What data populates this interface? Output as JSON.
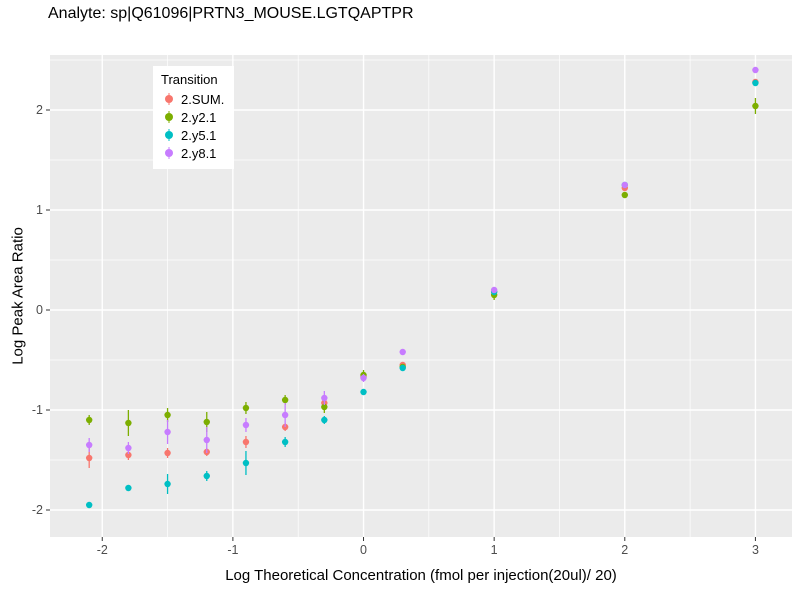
{
  "title": "Analyte: sp|Q61096|PRTN3_MOUSE.LGTQAPTPR",
  "chart_data": {
    "type": "scatter",
    "title": "Analyte: sp|Q61096|PRTN3_MOUSE.LGTQAPTPR",
    "xlabel": "Log Theoretical Concentration (fmol per injection(20ul)/ 20)",
    "ylabel": "Log Peak Area Ratio",
    "xlim": [
      -2.4,
      3.28
    ],
    "ylim": [
      -2.27,
      2.55
    ],
    "x_ticks_major": [
      -2,
      -1,
      0,
      1,
      2,
      3
    ],
    "x_ticks_minor": [
      -1.5,
      -0.5,
      0.5,
      1.5,
      2.5
    ],
    "y_ticks_major": [
      -2,
      -1,
      0,
      1,
      2
    ],
    "y_ticks_minor": [
      -1.5,
      -0.5,
      0.5,
      1.5,
      2.5
    ],
    "grid": true,
    "panel_bg": "#ebebeb",
    "grid_color": "#ffffff",
    "tick_label_color": "#4d4d4d",
    "tick_mark_color": "#333333",
    "legend_title": "Transition",
    "legend_position": "top-left-inset",
    "x": [
      -2.1,
      -1.8,
      -1.5,
      -1.2,
      -0.9,
      -0.6,
      -0.3,
      0,
      0.3,
      1,
      2,
      3
    ],
    "series": [
      {
        "name": "2.SUM.",
        "color": "#F8766D",
        "y": [
          -1.48,
          -1.45,
          -1.43,
          -1.42,
          -1.32,
          -1.17,
          -0.93,
          -0.67,
          -0.55,
          0.18,
          1.22,
          2.28
        ],
        "se": [
          0.1,
          0.05,
          0.05,
          0.04,
          0.06,
          0.04,
          0.05,
          0.04,
          0.03,
          0.04,
          0.03,
          0.03
        ]
      },
      {
        "name": "2.y2.1",
        "color": "#7CAE00",
        "y": [
          -1.1,
          -1.13,
          -1.05,
          -1.12,
          -0.98,
          -0.9,
          -0.97,
          -0.65,
          -0.57,
          0.15,
          1.15,
          2.04
        ],
        "se": [
          0.05,
          0.13,
          0.07,
          0.1,
          0.06,
          0.05,
          0.06,
          0.05,
          0.03,
          0.05,
          0.03,
          0.08
        ]
      },
      {
        "name": "2.y5.1",
        "color": "#00BFC4",
        "y": [
          -1.95,
          -1.78,
          -1.74,
          -1.66,
          -1.53,
          -1.32,
          -1.1,
          -0.82,
          -0.58,
          0.18,
          1.25,
          2.27
        ],
        "se": [
          0.03,
          0.03,
          0.1,
          0.05,
          0.12,
          0.05,
          0.04,
          0.03,
          0.03,
          0.03,
          0.02,
          0.03
        ]
      },
      {
        "name": "2.y8.1",
        "color": "#C77CFF",
        "y": [
          -1.35,
          -1.38,
          -1.22,
          -1.3,
          -1.15,
          -1.05,
          -0.88,
          -0.68,
          -0.42,
          0.2,
          1.25,
          2.4
        ],
        "se": [
          0.07,
          0.06,
          0.12,
          0.13,
          0.07,
          0.12,
          0.07,
          0.04,
          0.03,
          0.03,
          0.02,
          0.02
        ]
      }
    ]
  }
}
